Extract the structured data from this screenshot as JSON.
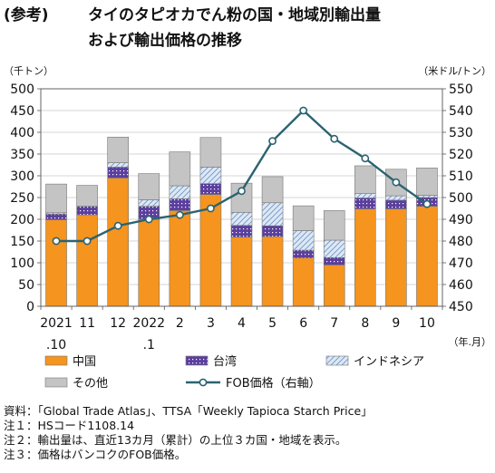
{
  "header": {
    "tag": "(参考)",
    "title_line1": "タイのタピオカでん粉の国・地域別輸出量",
    "title_line2": "および輸出価格の推移"
  },
  "notes": {
    "source": "資料：「Global Trade Atlas」、TTSA「Weekly Tapioca Starch Price」",
    "note1": "注１：HSコード1108.14",
    "note2": "注２：輸出量は、直近13カ月（累計）の上位３カ国・地域を表示。",
    "note3": "注３：価格はバンコクのFOB価格。"
  },
  "colors": {
    "china": "#f5941e",
    "taiwan": "#5b3f9e",
    "indonesia": "#dce8f5",
    "other": "#c4c4c4",
    "fob_line": "#2b6370"
  },
  "chart_data": {
    "type": "bar",
    "stacked": true,
    "left_axis_unit": "（千トン）",
    "right_axis_unit": "（米ドル/トン）",
    "x_unit": "（年.月）",
    "ylim": [
      0,
      500
    ],
    "y_ticks": [
      0,
      50,
      100,
      150,
      200,
      250,
      300,
      350,
      400,
      450,
      500
    ],
    "y2lim": [
      450,
      550
    ],
    "y2_ticks": [
      450,
      460,
      470,
      480,
      490,
      500,
      510,
      520,
      530,
      540,
      550
    ],
    "categories": [
      {
        "line1": "2021",
        "line2": ".10"
      },
      {
        "line1": "11",
        "line2": ""
      },
      {
        "line1": "12",
        "line2": ""
      },
      {
        "line1": "2022",
        "line2": ".1"
      },
      {
        "line1": "2",
        "line2": ""
      },
      {
        "line1": "3",
        "line2": ""
      },
      {
        "line1": "4",
        "line2": ""
      },
      {
        "line1": "5",
        "line2": ""
      },
      {
        "line1": "6",
        "line2": ""
      },
      {
        "line1": "7",
        "line2": ""
      },
      {
        "line1": "8",
        "line2": ""
      },
      {
        "line1": "9",
        "line2": ""
      },
      {
        "line1": "10",
        "line2": ""
      }
    ],
    "series": [
      {
        "name": "中国",
        "key": "china",
        "values": [
          199,
          210,
          295,
          200,
          220,
          257,
          159,
          160,
          111,
          95,
          224,
          224,
          230
        ]
      },
      {
        "name": "台湾",
        "key": "taiwan",
        "values": [
          13,
          20,
          25,
          30,
          27,
          25,
          27,
          25,
          18,
          17,
          25,
          20,
          20
        ]
      },
      {
        "name": "インドネシア",
        "key": "indonesia",
        "values": [
          3,
          0,
          10,
          15,
          30,
          38,
          30,
          53,
          45,
          40,
          10,
          10,
          5
        ]
      },
      {
        "name": "その他",
        "key": "other",
        "values": [
          66,
          48,
          59,
          60,
          78,
          68,
          67,
          60,
          57,
          68,
          64,
          61,
          63
        ]
      }
    ],
    "line_series": {
      "name": "FOB価格（右軸）",
      "axis": "right",
      "values": [
        480,
        480,
        487,
        490,
        492,
        495,
        503,
        526,
        540,
        527,
        518,
        507,
        497
      ]
    }
  }
}
